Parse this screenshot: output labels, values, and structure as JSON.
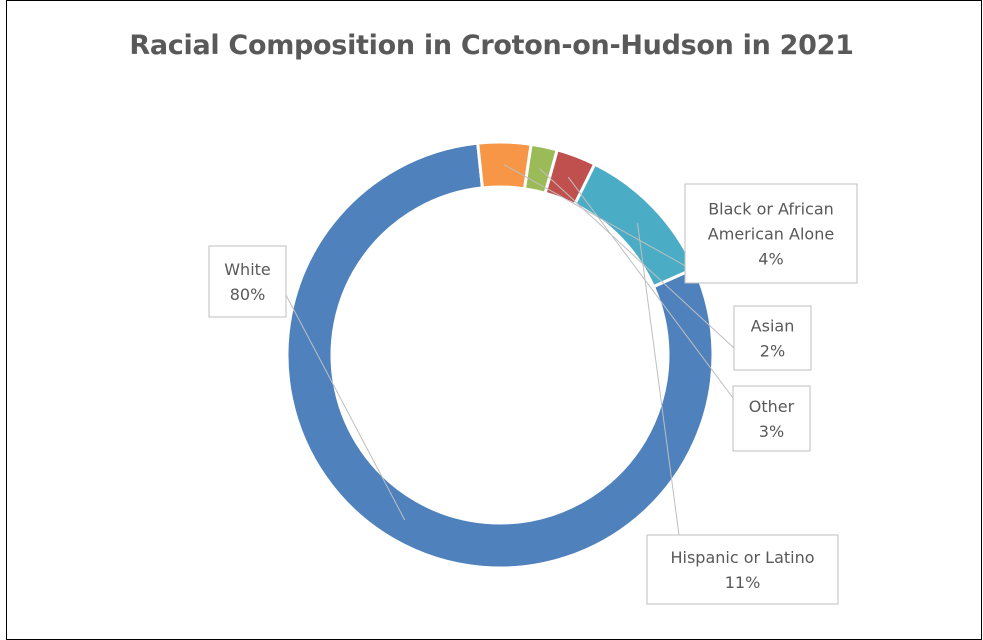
{
  "chart_data": {
    "type": "donut",
    "title": "Racial Composition in Croton-on-Hudson in 2021",
    "series": [
      {
        "name": "White",
        "value": 80,
        "label": "80%",
        "color": "#4F81BD"
      },
      {
        "name": "Black or African American Alone",
        "value": 4,
        "label": "4%",
        "color": "#F79646"
      },
      {
        "name": "Asian",
        "value": 2,
        "label": "2%",
        "color": "#9BBB59"
      },
      {
        "name": "Other",
        "value": 3,
        "label": "3%",
        "color": "#C0504D"
      },
      {
        "name": "Hispanic or Latino",
        "value": 11,
        "label": "11%",
        "color": "#4BACC6"
      }
    ]
  }
}
